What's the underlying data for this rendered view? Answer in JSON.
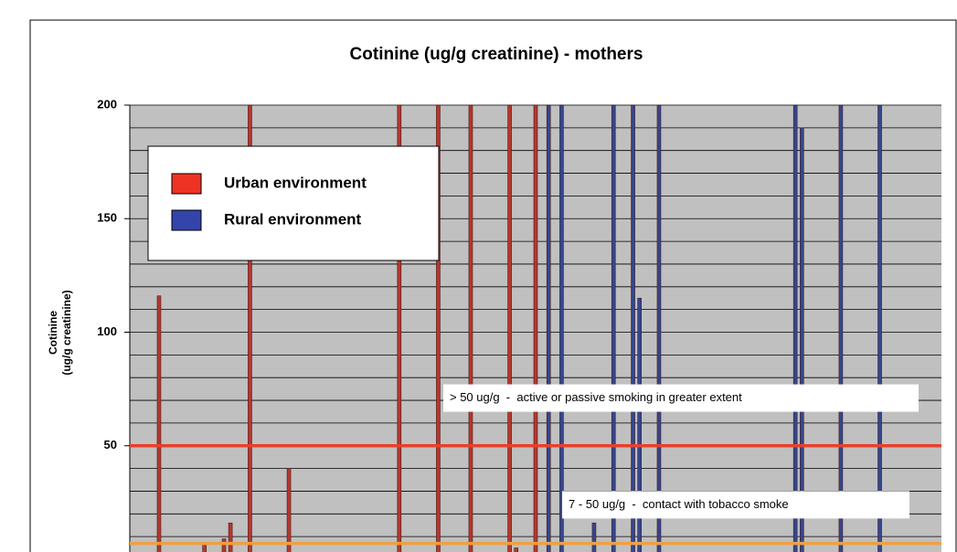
{
  "chart_data": {
    "type": "bar",
    "title": "Cotinine (ug/g creatinine) - mothers",
    "y_label": [
      "Cotinine",
      "(ug/g creatinine)"
    ],
    "xlim": [
      0,
      125
    ],
    "ylim": [
      0,
      200
    ],
    "yticks": [
      50,
      100,
      150,
      200
    ],
    "grid_lines": [
      10,
      20,
      30,
      40,
      50,
      60,
      70,
      80,
      90,
      100,
      110,
      120,
      130,
      140,
      150,
      160,
      170,
      180,
      190,
      200
    ],
    "series": [
      {
        "name": "Urban environment",
        "color": "#ee3322",
        "bar_color": "#b5372c",
        "x": [
          4,
          8,
          11,
          14,
          15,
          18,
          24,
          26,
          36,
          41,
          47,
          52,
          58,
          59,
          62
        ],
        "values": [
          116,
          1,
          7,
          9,
          16,
          200,
          40,
          1,
          1,
          200,
          200,
          200,
          200,
          5,
          200
        ]
      },
      {
        "name": "Rural environment",
        "color": "#3344aa",
        "bar_color": "#33478f",
        "x": [
          64,
          66,
          71,
          74,
          77,
          78,
          80,
          81,
          98,
          102,
          103,
          109,
          112,
          115,
          118
        ],
        "values": [
          200,
          200,
          16,
          200,
          200,
          115,
          1,
          200,
          1,
          200,
          190,
          200,
          2,
          200,
          1
        ]
      }
    ],
    "reference_lines": [
      {
        "value": 50,
        "color": "#e8402a"
      },
      {
        "value": 7,
        "color": "#f0a040"
      }
    ],
    "annotations": [
      {
        "text": "> 50 ug/g  -  active or passive smoking in greater extent",
        "value": 71
      },
      {
        "text": "7 - 50 ug/g  -  contact with tobacco smoke",
        "value": 24
      }
    ]
  }
}
